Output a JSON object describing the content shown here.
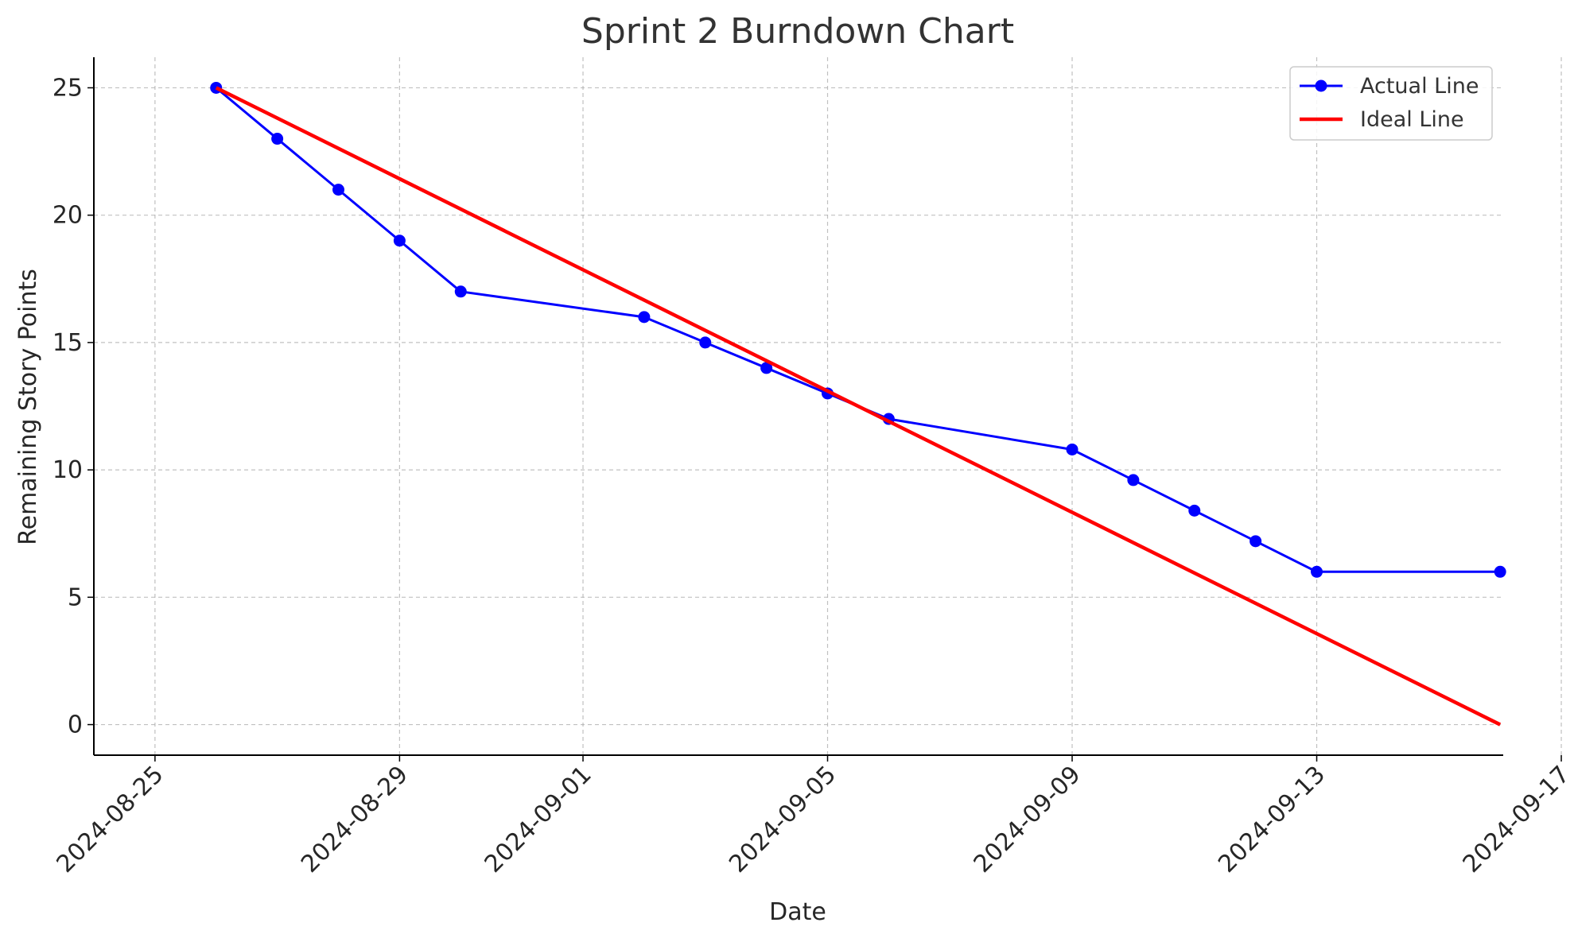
{
  "chart_data": {
    "type": "line",
    "title": "Sprint 2 Burndown Chart",
    "xlabel": "Date",
    "ylabel": "Remaining Story Points",
    "x_ticks": [
      "2024-08-25",
      "2024-08-29",
      "2024-09-01",
      "2024-09-05",
      "2024-09-09",
      "2024-09-13",
      "2024-09-17"
    ],
    "y_ticks": [
      "0",
      "5",
      "10",
      "15",
      "20",
      "25"
    ],
    "ylim": [
      -1.2,
      26.2
    ],
    "xlim_days_from_2024_08_25": [
      -1.0,
      22.05
    ],
    "grid": true,
    "legend_position": "top-right",
    "series": [
      {
        "name": "Actual Line",
        "color": "#0000ff",
        "marker": "circle",
        "x": [
          "2024-08-26",
          "2024-08-27",
          "2024-08-28",
          "2024-08-29",
          "2024-08-30",
          "2024-09-02",
          "2024-09-03",
          "2024-09-04",
          "2024-09-05",
          "2024-09-06",
          "2024-09-09",
          "2024-09-10",
          "2024-09-11",
          "2024-09-12",
          "2024-09-13",
          "2024-09-16"
        ],
        "values": [
          25,
          23,
          21,
          19,
          17,
          16,
          15,
          14,
          13,
          12,
          10.8,
          9.6,
          8.4,
          7.2,
          6,
          6
        ]
      },
      {
        "name": "Ideal Line",
        "color": "#ff0000",
        "marker": "none",
        "x": [
          "2024-08-26",
          "2024-09-16"
        ],
        "values": [
          25,
          0
        ]
      }
    ]
  }
}
